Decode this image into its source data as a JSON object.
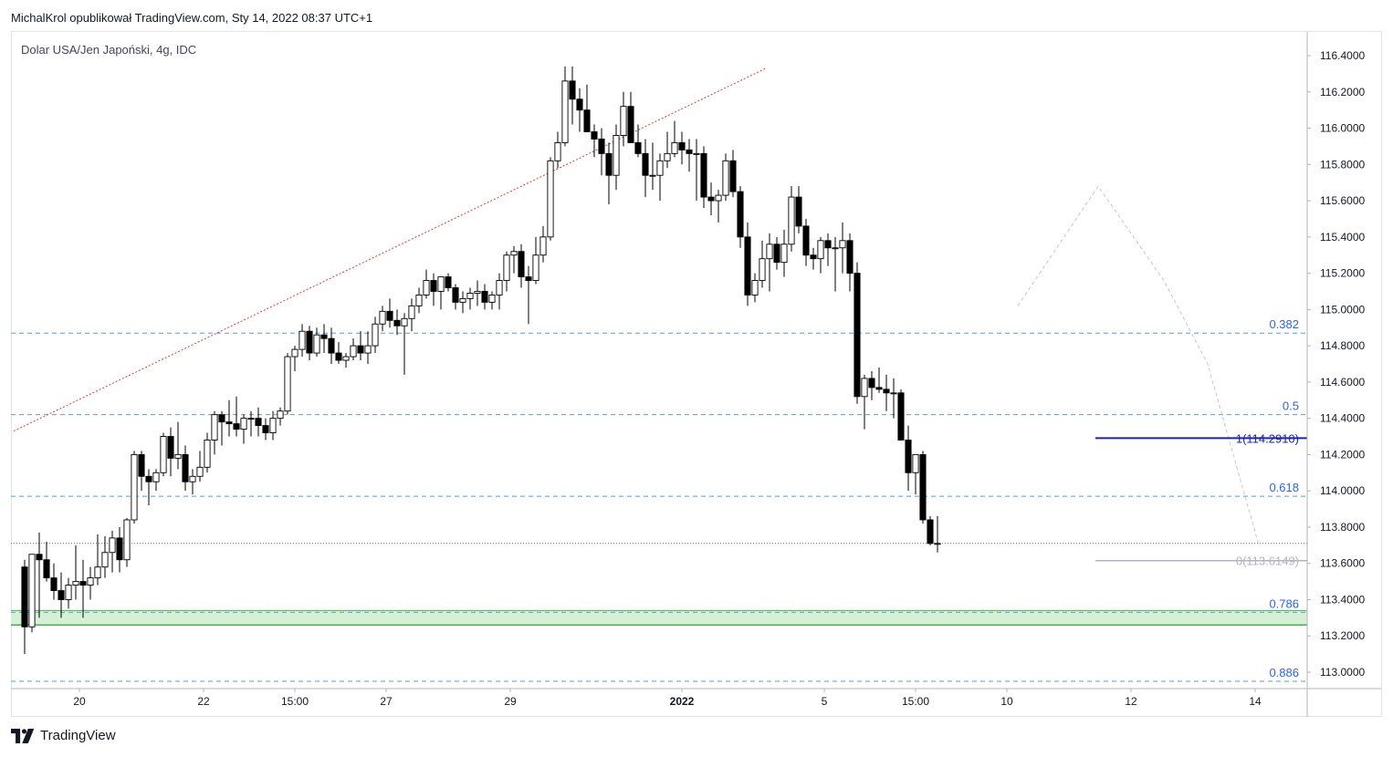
{
  "publisher_line": "MichalKrol opublikował TradingView.com, Sty 14, 2022 08:37 UTC+1",
  "footer": {
    "brand": "TradingView",
    "logo_icon": "tradingview-logo-icon"
  },
  "colors": {
    "bull_body": "#ffffff",
    "bear_body": "#000000",
    "wick": "#000000",
    "fib_line": "#5b9bd5",
    "fib_label": "#2962ff",
    "trend_line": "#e53935",
    "level_1": "#1a23b0",
    "level_0": "#b2b5be",
    "zone_fill": "#d6f0d6",
    "zone_border": "#4caf50",
    "grid": "#e0e3eb"
  },
  "chart_data": {
    "type": "candlestick",
    "title": "Dolar USA/Jen Japoński, 4g, IDC",
    "symbol": "USD/JPY",
    "ylim": [
      112.9,
      116.55
    ],
    "y_ticks": [
      "116.4000",
      "116.2000",
      "116.0000",
      "115.8000",
      "115.6000",
      "115.4000",
      "115.2000",
      "115.0000",
      "114.8000",
      "114.6000",
      "114.4000",
      "114.2000",
      "114.0000",
      "113.8000",
      "113.6000",
      "113.4000",
      "113.2000",
      "113.0000"
    ],
    "x_ticks": [
      {
        "label": "20",
        "bar": 7.5,
        "bold": false
      },
      {
        "label": "22",
        "bar": 24.5,
        "bold": false
      },
      {
        "label": "15:00",
        "bar": 37,
        "bold": false
      },
      {
        "label": "27",
        "bar": 49.5,
        "bold": false
      },
      {
        "label": "29",
        "bar": 66.5,
        "bold": false
      },
      {
        "label": "2022",
        "bar": 90,
        "bold": true
      },
      {
        "label": "5",
        "bar": 109.5,
        "bold": false
      },
      {
        "label": "15:00",
        "bar": 122,
        "bold": false
      },
      {
        "label": "10",
        "bar": 134.5,
        "bold": false
      },
      {
        "label": "12",
        "bar": 151.5,
        "bold": false
      },
      {
        "label": "14",
        "bar": 168.5,
        "bold": false
      }
    ],
    "candles": [
      [
        113.58,
        113.62,
        113.1,
        113.25
      ],
      [
        113.25,
        113.65,
        113.22,
        113.65
      ],
      [
        113.65,
        113.77,
        113.3,
        113.62
      ],
      [
        113.62,
        113.72,
        113.5,
        113.52
      ],
      [
        113.52,
        113.6,
        113.4,
        113.45
      ],
      [
        113.45,
        113.55,
        113.3,
        113.4
      ],
      [
        113.4,
        113.52,
        113.35,
        113.48
      ],
      [
        113.48,
        113.7,
        113.4,
        113.5
      ],
      [
        113.5,
        113.62,
        113.3,
        113.48
      ],
      [
        113.48,
        113.58,
        113.4,
        113.52
      ],
      [
        113.52,
        113.76,
        113.48,
        113.58
      ],
      [
        113.58,
        113.75,
        113.52,
        113.66
      ],
      [
        113.66,
        113.78,
        113.55,
        113.74
      ],
      [
        113.74,
        113.8,
        113.55,
        113.62
      ],
      [
        113.62,
        113.85,
        113.58,
        113.84
      ],
      [
        113.84,
        114.22,
        113.82,
        114.2
      ],
      [
        114.2,
        114.22,
        114.0,
        114.08
      ],
      [
        114.08,
        114.12,
        113.92,
        114.05
      ],
      [
        114.05,
        114.12,
        114.0,
        114.1
      ],
      [
        114.1,
        114.32,
        114.08,
        114.3
      ],
      [
        114.3,
        114.35,
        114.08,
        114.18
      ],
      [
        114.18,
        114.38,
        114.12,
        114.2
      ],
      [
        114.2,
        114.25,
        114.0,
        114.05
      ],
      [
        114.05,
        114.12,
        113.98,
        114.08
      ],
      [
        114.08,
        114.22,
        114.05,
        114.13
      ],
      [
        114.13,
        114.32,
        114.1,
        114.28
      ],
      [
        114.28,
        114.44,
        114.2,
        114.42
      ],
      [
        114.42,
        114.44,
        114.25,
        114.38
      ],
      [
        114.38,
        114.5,
        114.3,
        114.37
      ],
      [
        114.37,
        114.52,
        114.3,
        114.34
      ],
      [
        114.34,
        114.42,
        114.26,
        114.4
      ],
      [
        114.4,
        114.44,
        114.3,
        114.4
      ],
      [
        114.4,
        114.46,
        114.3,
        114.36
      ],
      [
        114.36,
        114.4,
        114.28,
        114.32
      ],
      [
        114.32,
        114.44,
        114.28,
        114.4
      ],
      [
        114.4,
        114.46,
        114.36,
        114.44
      ],
      [
        114.44,
        114.76,
        114.42,
        114.74
      ],
      [
        114.74,
        114.8,
        114.66,
        114.78
      ],
      [
        114.78,
        114.92,
        114.74,
        114.88
      ],
      [
        114.88,
        114.91,
        114.72,
        114.76
      ],
      [
        114.76,
        114.9,
        114.74,
        114.86
      ],
      [
        114.86,
        114.92,
        114.76,
        114.84
      ],
      [
        114.84,
        114.9,
        114.7,
        114.76
      ],
      [
        114.76,
        114.82,
        114.7,
        114.72
      ],
      [
        114.72,
        114.76,
        114.68,
        114.74
      ],
      [
        114.74,
        114.84,
        114.72,
        114.8
      ],
      [
        114.8,
        114.88,
        114.72,
        114.76
      ],
      [
        114.76,
        114.88,
        114.7,
        114.8
      ],
      [
        114.8,
        114.96,
        114.76,
        114.92
      ],
      [
        114.92,
        115.02,
        114.88,
        114.99
      ],
      [
        114.99,
        115.06,
        114.9,
        114.94
      ],
      [
        114.94,
        115.0,
        114.86,
        114.91
      ],
      [
        114.91,
        114.98,
        114.64,
        114.95
      ],
      [
        114.95,
        115.06,
        114.88,
        115.02
      ],
      [
        115.02,
        115.12,
        114.98,
        115.08
      ],
      [
        115.08,
        115.22,
        115.06,
        115.16
      ],
      [
        115.16,
        115.2,
        115.02,
        115.1
      ],
      [
        115.1,
        115.18,
        115.0,
        115.18
      ],
      [
        115.18,
        115.2,
        115.1,
        115.12
      ],
      [
        115.12,
        115.14,
        115.0,
        115.04
      ],
      [
        115.04,
        115.1,
        114.98,
        115.06
      ],
      [
        115.06,
        115.12,
        115.0,
        115.09
      ],
      [
        115.09,
        115.16,
        115.02,
        115.1
      ],
      [
        115.1,
        115.14,
        115.0,
        115.04
      ],
      [
        115.04,
        115.1,
        115.0,
        115.08
      ],
      [
        115.08,
        115.2,
        115.0,
        115.16
      ],
      [
        115.16,
        115.32,
        115.1,
        115.3
      ],
      [
        115.3,
        115.35,
        115.2,
        115.32
      ],
      [
        115.32,
        115.36,
        115.12,
        115.18
      ],
      [
        115.18,
        115.24,
        114.92,
        115.16
      ],
      [
        115.16,
        115.4,
        115.14,
        115.3
      ],
      [
        115.3,
        115.46,
        115.26,
        115.4
      ],
      [
        115.4,
        115.84,
        115.38,
        115.82
      ],
      [
        115.82,
        115.98,
        115.78,
        115.92
      ],
      [
        115.92,
        116.34,
        115.9,
        116.26
      ],
      [
        116.26,
        116.34,
        116.02,
        116.16
      ],
      [
        116.16,
        116.22,
        115.98,
        116.1
      ],
      [
        116.1,
        116.24,
        115.98,
        115.98
      ],
      [
        115.98,
        116.02,
        115.84,
        115.94
      ],
      [
        115.94,
        116.0,
        115.74,
        115.86
      ],
      [
        115.86,
        115.92,
        115.58,
        115.74
      ],
      [
        115.74,
        116.02,
        115.66,
        115.96
      ],
      [
        115.96,
        116.2,
        115.9,
        116.12
      ],
      [
        116.12,
        116.2,
        115.94,
        115.92
      ],
      [
        115.92,
        116.02,
        115.84,
        115.86
      ],
      [
        115.86,
        115.94,
        115.62,
        115.74
      ],
      [
        115.74,
        115.92,
        115.66,
        115.74
      ],
      [
        115.74,
        115.86,
        115.6,
        115.82
      ],
      [
        115.82,
        115.98,
        115.78,
        115.86
      ],
      [
        115.86,
        116.04,
        115.84,
        115.92
      ],
      [
        115.92,
        115.98,
        115.8,
        115.88
      ],
      [
        115.88,
        115.94,
        115.76,
        115.86
      ],
      [
        115.86,
        115.94,
        115.6,
        115.86
      ],
      [
        115.86,
        115.9,
        115.56,
        115.62
      ],
      [
        115.62,
        115.7,
        115.52,
        115.6
      ],
      [
        115.6,
        115.66,
        115.48,
        115.63
      ],
      [
        115.63,
        115.86,
        115.6,
        115.82
      ],
      [
        115.82,
        115.88,
        115.62,
        115.65
      ],
      [
        115.65,
        115.68,
        115.34,
        115.4
      ],
      [
        115.4,
        115.48,
        115.02,
        115.08
      ],
      [
        115.08,
        115.2,
        115.04,
        115.16
      ],
      [
        115.16,
        115.38,
        115.12,
        115.28
      ],
      [
        115.28,
        115.42,
        115.1,
        115.36
      ],
      [
        115.36,
        115.4,
        115.22,
        115.26
      ],
      [
        115.26,
        115.44,
        115.18,
        115.36
      ],
      [
        115.36,
        115.68,
        115.32,
        115.62
      ],
      [
        115.62,
        115.68,
        115.42,
        115.46
      ],
      [
        115.46,
        115.5,
        115.24,
        115.3
      ],
      [
        115.3,
        115.34,
        115.22,
        115.28
      ],
      [
        115.28,
        115.4,
        115.2,
        115.38
      ],
      [
        115.38,
        115.42,
        115.24,
        115.34
      ],
      [
        115.34,
        115.4,
        115.1,
        115.34
      ],
      [
        115.34,
        115.48,
        115.2,
        115.38
      ],
      [
        115.38,
        115.42,
        115.1,
        115.2
      ],
      [
        115.2,
        115.26,
        114.48,
        114.52
      ],
      [
        114.52,
        114.64,
        114.34,
        114.62
      ],
      [
        114.62,
        114.66,
        114.5,
        114.57
      ],
      [
        114.57,
        114.68,
        114.54,
        114.56
      ],
      [
        114.56,
        114.64,
        114.44,
        114.54
      ],
      [
        114.54,
        114.62,
        114.4,
        114.54
      ],
      [
        114.54,
        114.56,
        114.28,
        114.28
      ],
      [
        114.28,
        114.36,
        114.0,
        114.1
      ],
      [
        114.1,
        114.2,
        113.98,
        114.2
      ],
      [
        114.2,
        114.22,
        113.82,
        113.84
      ],
      [
        113.84,
        113.86,
        113.7,
        113.71
      ],
      [
        113.71,
        113.86,
        113.66,
        113.71
      ]
    ],
    "fibonacci": {
      "high": 114.291,
      "low": 113.6149,
      "levels": [
        {
          "label": "0.382",
          "price": 114.87
        },
        {
          "label": "0.5",
          "price": 114.42
        },
        {
          "label": "0.618",
          "price": 113.97
        },
        {
          "label": "0.786",
          "price": 113.33
        },
        {
          "label": "0.886",
          "price": 112.95
        }
      ],
      "label_1": "1(114.2910)",
      "label_0": "0(113.6149)"
    },
    "support_zone": {
      "from": 113.26,
      "to": 113.34
    },
    "last_price": 113.71,
    "trend_line": {
      "from_bar": 0,
      "from_price": 114.36,
      "to_bar": 94,
      "to_price": 116.34
    }
  }
}
